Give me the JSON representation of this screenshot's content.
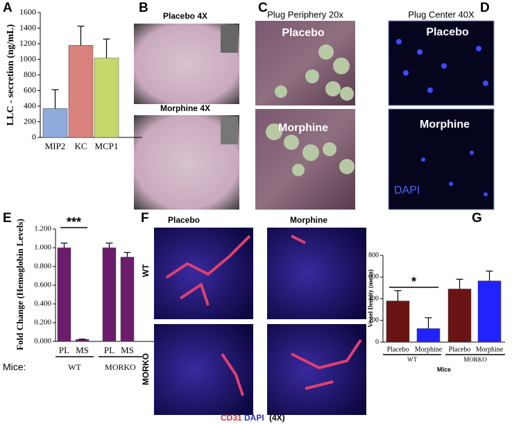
{
  "panels": {
    "a": "A",
    "b": "B",
    "c": "C",
    "d": "D",
    "e": "E",
    "f": "F",
    "g": "G"
  },
  "micrographs": {
    "b_top": "Placebo 4X",
    "b_bottom": "Morphine 4X",
    "c_title": "Plug Periphery 20x",
    "c_top": "Placebo",
    "c_bottom": "Morphine",
    "d_title": "Plug Center 40X",
    "d_top": "Placebo",
    "d_bottom": "Morphine",
    "d_stain": "DAPI",
    "f_col1": "Placebo",
    "f_col2": "Morphine",
    "f_row1": "WT",
    "f_row2": "MORKO",
    "f_stain1": "CD31",
    "f_stain2": "DAPI",
    "f_mag": "(4X)"
  },
  "chart_data": [
    {
      "type": "bar",
      "ylabel": "LLC - secretion (ng/mL)",
      "categories": [
        "MIP2",
        "KC",
        "MCP1"
      ],
      "values": [
        370,
        1180,
        1015
      ],
      "errors": [
        240,
        245,
        245
      ],
      "colors": [
        "#8faadc",
        "#d9827d",
        "#c4d86c"
      ],
      "ylim": [
        0,
        1600
      ],
      "yticks": [
        0,
        200,
        400,
        600,
        800,
        1000,
        1200,
        1400,
        1600
      ]
    },
    {
      "type": "bar",
      "ylabel": "Fold Change (Hemoglobin Levels)",
      "categories": [
        "PL",
        "MS",
        "PL",
        "MS"
      ],
      "values": [
        1.0,
        0.02,
        1.0,
        0.9
      ],
      "errors": [
        0.05,
        0.005,
        0.05,
        0.05
      ],
      "colors": [
        "#6b1d6b",
        "#6b1d6b",
        "#6b1d6b",
        "#6b1d6b"
      ],
      "groups": [
        "WT",
        "MORKO"
      ],
      "xlabel": "Mice:",
      "annotation": "***",
      "ylim": [
        0,
        1.2
      ],
      "yticks": [
        {
          "value": 0,
          "label": "0.000"
        },
        {
          "value": 0.2,
          "label": "0.200"
        },
        {
          "value": 0.4,
          "label": "0.400"
        },
        {
          "value": 0.6,
          "label": "0.600"
        },
        {
          "value": 0.8,
          "label": "0.800"
        },
        {
          "value": 1,
          "label": "1.000"
        },
        {
          "value": 1.2,
          "label": "1.200"
        }
      ]
    },
    {
      "type": "bar",
      "ylabel": "Vessel Density (mean)",
      "categories": [
        "Placebo",
        "Morphine",
        "Placebo",
        "Morphine"
      ],
      "values": [
        380,
        125,
        490,
        565
      ],
      "errors": [
        95,
        100,
        90,
        90
      ],
      "colors": [
        "#6b1414",
        "#2222ff",
        "#6b1414",
        "#2222ff"
      ],
      "groups": [
        "WT",
        "MORKO"
      ],
      "xlabel": "Mice",
      "annotation": "*",
      "ylim": [
        0,
        800
      ],
      "yticks": [
        0,
        200,
        400,
        600,
        800
      ]
    }
  ]
}
